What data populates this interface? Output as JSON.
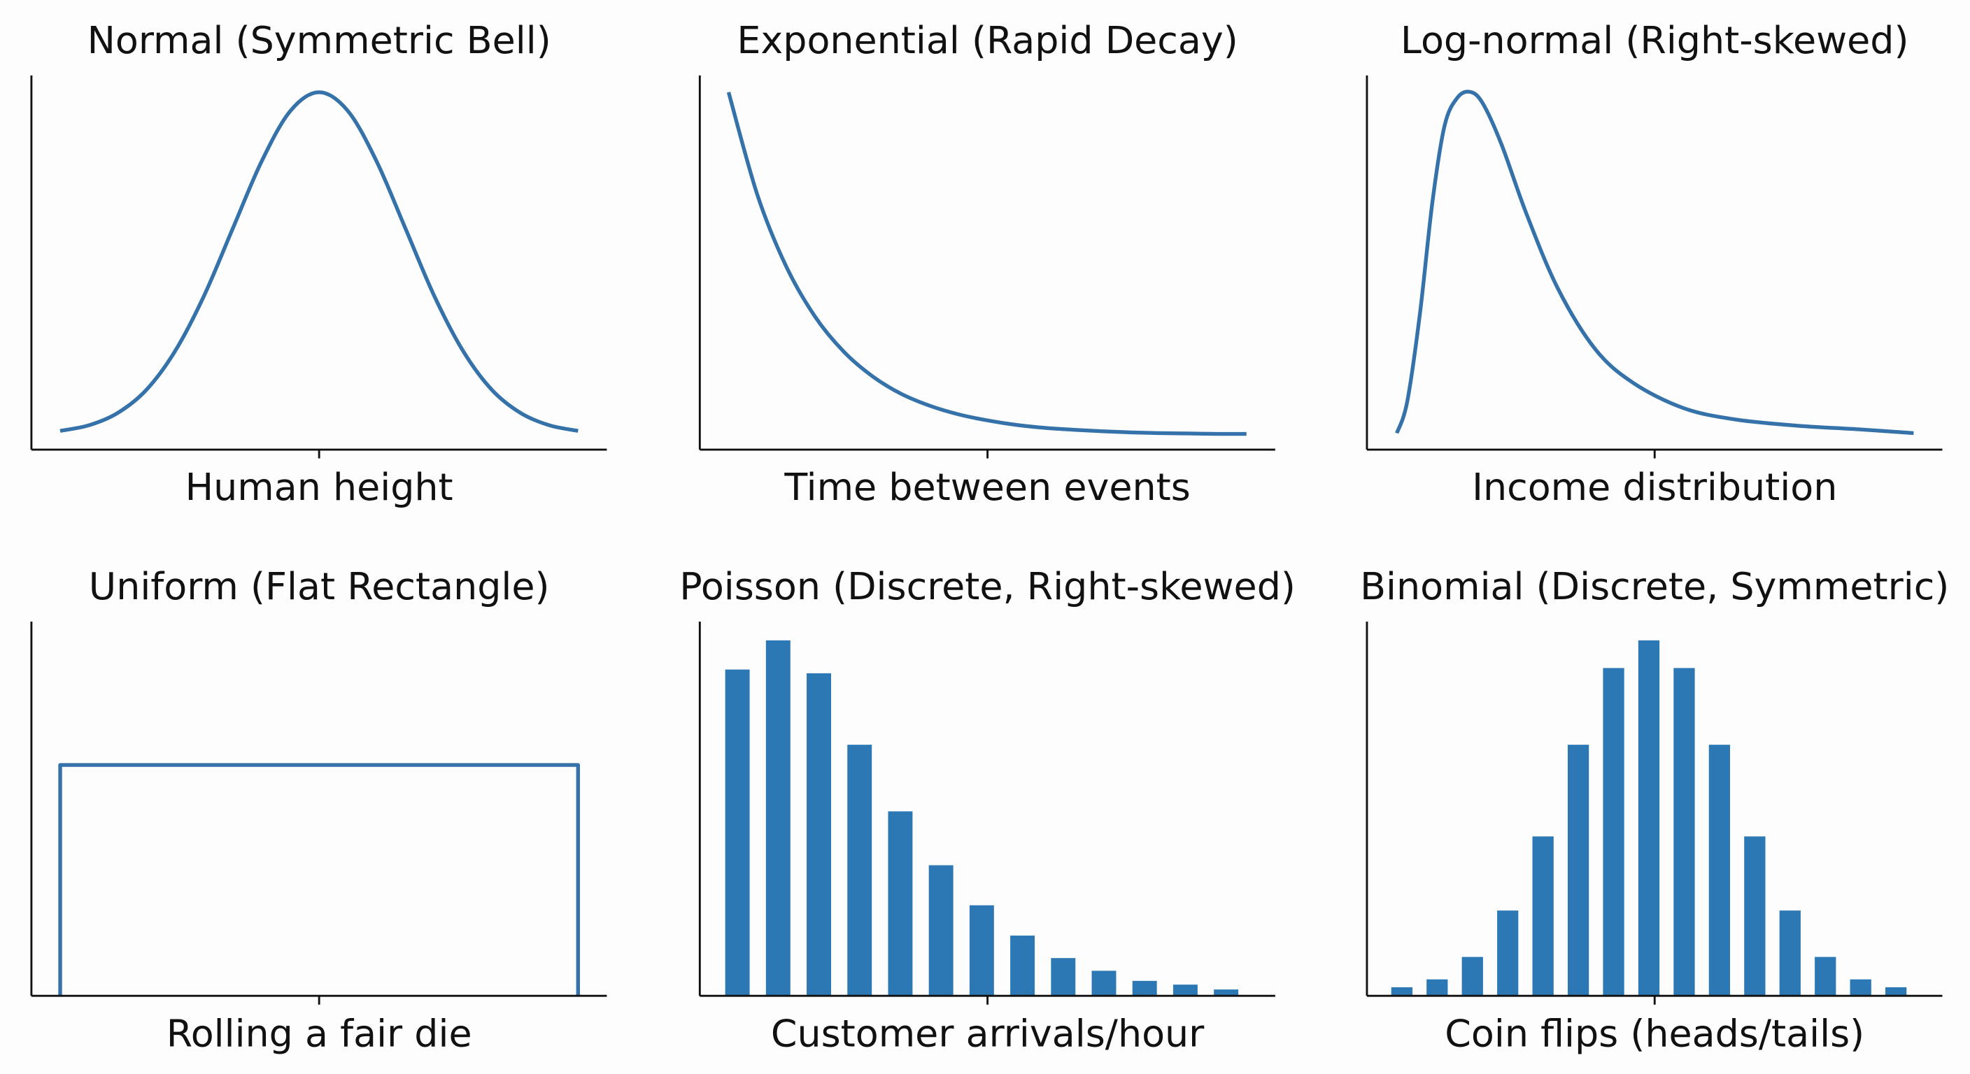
{
  "chart_data": [
    {
      "type": "line",
      "title": "Normal (Symmetric Bell)",
      "x_label": "Human height",
      "color": "#3572a9",
      "xlim": [
        0,
        1
      ],
      "ylim": [
        0,
        1
      ],
      "xticks": [
        0.5
      ],
      "x": [
        0.05,
        0.1,
        0.15,
        0.2,
        0.25,
        0.3,
        0.35,
        0.4,
        0.45,
        0.5,
        0.55,
        0.6,
        0.65,
        0.7,
        0.75,
        0.8,
        0.85,
        0.9,
        0.95
      ],
      "values": [
        0.05,
        0.065,
        0.098,
        0.16,
        0.264,
        0.411,
        0.591,
        0.77,
        0.905,
        0.955,
        0.905,
        0.77,
        0.591,
        0.411,
        0.264,
        0.16,
        0.098,
        0.065,
        0.05
      ]
    },
    {
      "type": "line",
      "title": "Exponential (Rapid Decay)",
      "x_label": "Time between events",
      "color": "#3572a9",
      "xlim": [
        0,
        1
      ],
      "ylim": [
        0,
        1
      ],
      "xticks": [
        0.5
      ],
      "x": [
        0.05,
        0.1,
        0.15,
        0.2,
        0.25,
        0.3,
        0.35,
        0.4,
        0.45,
        0.5,
        0.55,
        0.6,
        0.65,
        0.7,
        0.75,
        0.8,
        0.85,
        0.9,
        0.95
      ],
      "values": [
        0.955,
        0.681,
        0.49,
        0.356,
        0.262,
        0.196,
        0.149,
        0.117,
        0.094,
        0.078,
        0.066,
        0.058,
        0.053,
        0.049,
        0.046,
        0.044,
        0.043,
        0.042,
        0.042
      ]
    },
    {
      "type": "line",
      "title": "Log-normal (Right-skewed)",
      "x_label": "Income distribution",
      "color": "#3572a9",
      "xlim": [
        0,
        1
      ],
      "ylim": [
        0,
        1
      ],
      "xticks": [
        0.5
      ],
      "x": [
        0.052,
        0.07,
        0.092,
        0.114,
        0.135,
        0.157,
        0.179,
        0.201,
        0.234,
        0.277,
        0.332,
        0.397,
        0.463,
        0.55,
        0.638,
        0.747,
        0.856,
        0.95
      ],
      "values": [
        0.044,
        0.128,
        0.362,
        0.664,
        0.866,
        0.94,
        0.956,
        0.926,
        0.815,
        0.631,
        0.43,
        0.268,
        0.178,
        0.111,
        0.081,
        0.064,
        0.054,
        0.044
      ]
    },
    {
      "type": "line",
      "title": "Uniform (Flat Rectangle)",
      "x_label": "Rolling a fair die",
      "color": "#3572a9",
      "xlim": [
        0,
        1
      ],
      "ylim": [
        0,
        1
      ],
      "xticks": [
        0.5
      ],
      "x": [
        0.05,
        0.05,
        0.95,
        0.95
      ],
      "values": [
        0,
        0.617,
        0.617,
        0
      ]
    },
    {
      "type": "bar",
      "title": "Poisson (Discrete, Right-skewed)",
      "x_label": "Customer arrivals/hour",
      "color": "#2b78b4",
      "xlim": [
        0,
        1
      ],
      "ylim": [
        0,
        1
      ],
      "xticks": [
        0.5
      ],
      "categories": [
        null,
        null,
        null,
        null,
        null,
        null,
        null,
        null,
        null,
        null,
        null,
        null,
        null
      ],
      "values": [
        0.872,
        0.95,
        0.862,
        0.671,
        0.493,
        0.349,
        0.242,
        0.161,
        0.101,
        0.067,
        0.04,
        0.03,
        0.017
      ]
    },
    {
      "type": "bar",
      "title": "Binomial (Discrete, Symmetric)",
      "x_label": "Coin flips (heads/tails)",
      "color": "#2b78b4",
      "xlim": [
        0,
        1
      ],
      "ylim": [
        0,
        1
      ],
      "xticks": [
        0.5
      ],
      "categories": [
        null,
        null,
        null,
        null,
        null,
        null,
        null,
        null,
        null,
        null,
        null,
        null,
        null,
        null,
        null
      ],
      "values": [
        0.023,
        0.044,
        0.104,
        0.228,
        0.426,
        0.671,
        0.876,
        0.95,
        0.876,
        0.671,
        0.426,
        0.228,
        0.104,
        0.044,
        0.023
      ]
    }
  ]
}
